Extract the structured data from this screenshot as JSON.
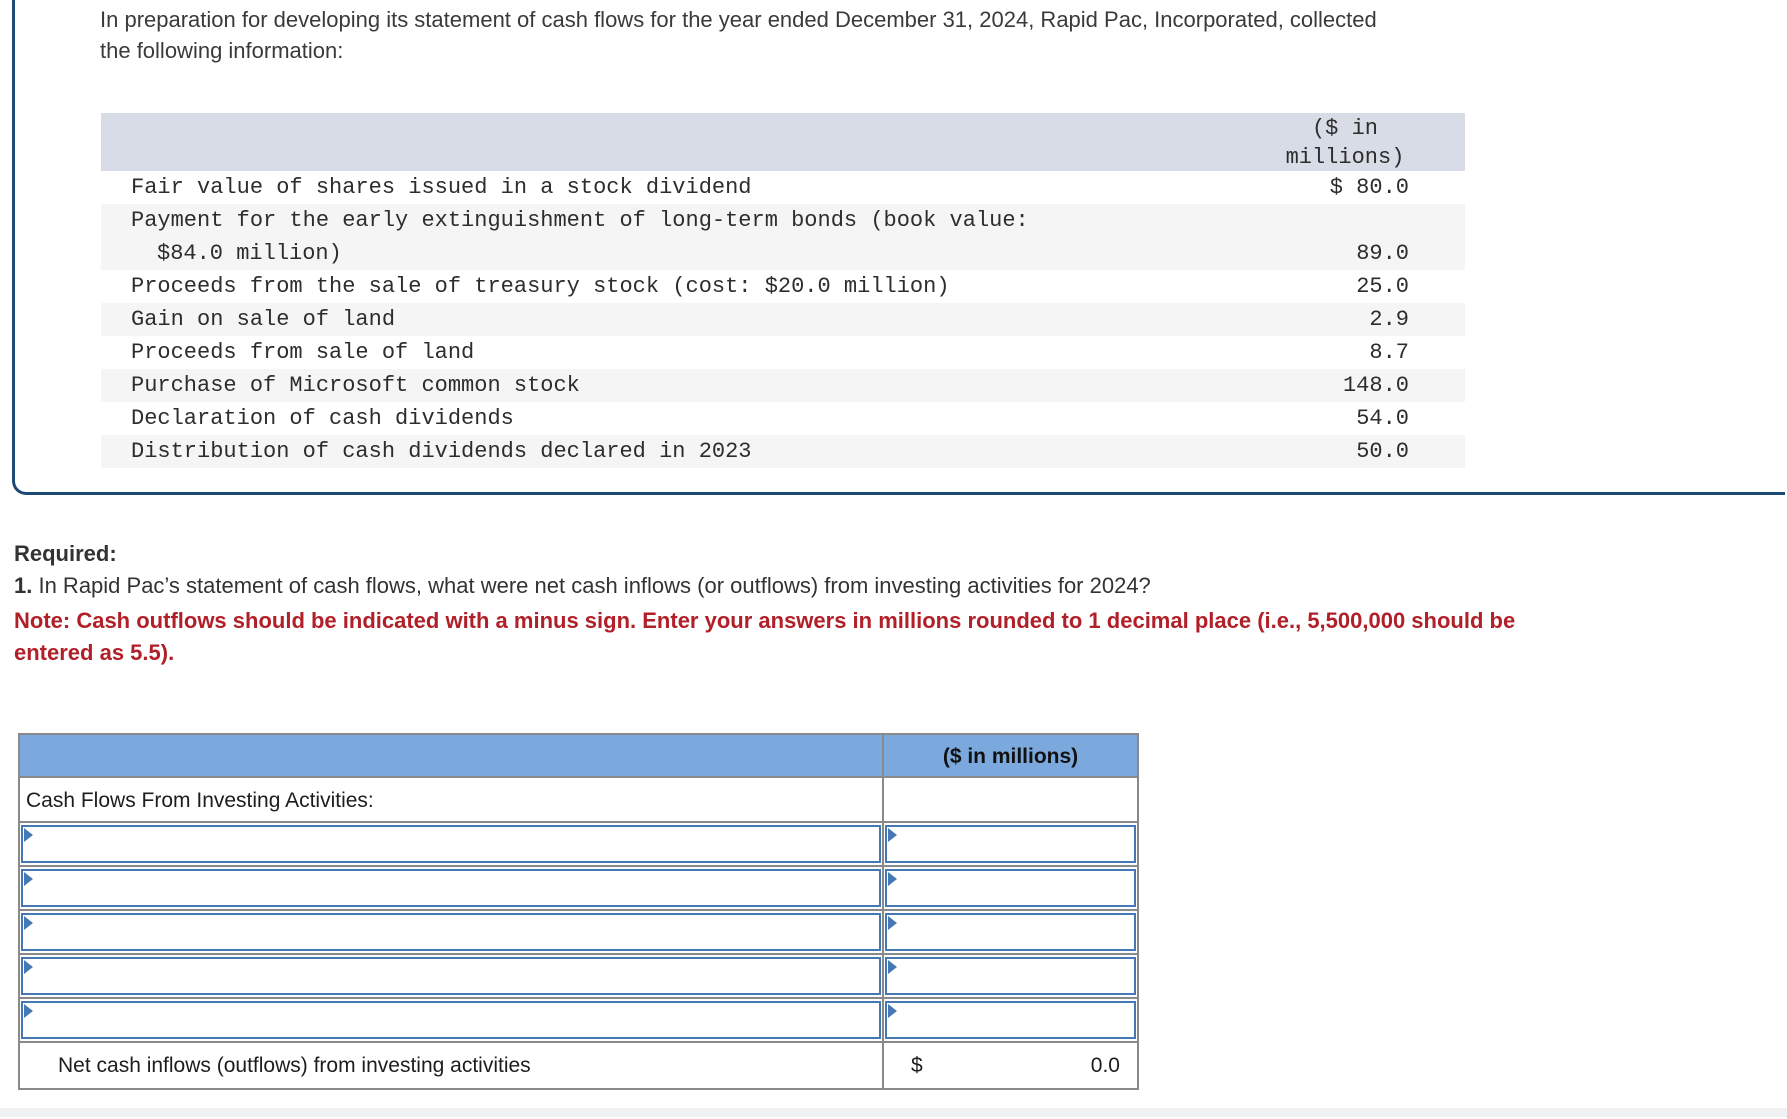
{
  "colors": {
    "card_border": "#1d4a75",
    "note_red": "#b12029",
    "info_header_bg": "#d8dce6",
    "answer_header_bg": "#7ba9dd",
    "input_border_blue": "#4678b4",
    "grid_gray": "#8a8a8a"
  },
  "intro": {
    "text": "In preparation for developing its statement of cash flows for the year ended December 31, 2024, Rapid Pac, Incorporated, collected the following information:"
  },
  "info_table": {
    "unit_header_line1": "($ in",
    "unit_header_line2": "millions)",
    "rows": [
      {
        "label": "Fair value of shares issued in a stock dividend",
        "value": "$ 80.0"
      },
      {
        "label": "Payment for the early extinguishment of long-term bonds (book value:",
        "label_line2": "$84.0 million)",
        "value": "89.0"
      },
      {
        "label": "Proceeds from the sale of treasury stock (cost: $20.0 million)",
        "value": "25.0"
      },
      {
        "label": "Gain on sale of land",
        "value": "2.9"
      },
      {
        "label": "Proceeds from sale of land",
        "value": "8.7"
      },
      {
        "label": "Purchase of Microsoft common stock",
        "value": "148.0"
      },
      {
        "label": "Declaration of cash dividends",
        "value": "54.0"
      },
      {
        "label": "Distribution of cash dividends declared in 2023",
        "value": "50.0"
      }
    ]
  },
  "required": {
    "heading": "Required:",
    "question_number": "1.",
    "question_text": " In Rapid Pac’s statement of cash flows, what were net cash inflows (or outflows) from investing activities for 2024?",
    "note_text": "Note: Cash outflows should be indicated with a minus sign. Enter your answers in millions rounded to 1 decimal place (i.e., 5,500,000 should be entered as 5.5)."
  },
  "answer_table": {
    "unit_header": "($ in millions)",
    "section_label": "Cash Flows From Investing Activities:",
    "input_rows": [
      {
        "description": "",
        "amount": ""
      },
      {
        "description": "",
        "amount": ""
      },
      {
        "description": "",
        "amount": ""
      },
      {
        "description": "",
        "amount": ""
      },
      {
        "description": "",
        "amount": ""
      }
    ],
    "total_label": "Net cash inflows (outflows) from investing activities",
    "total_currency": "$",
    "total_value": "0.0"
  }
}
